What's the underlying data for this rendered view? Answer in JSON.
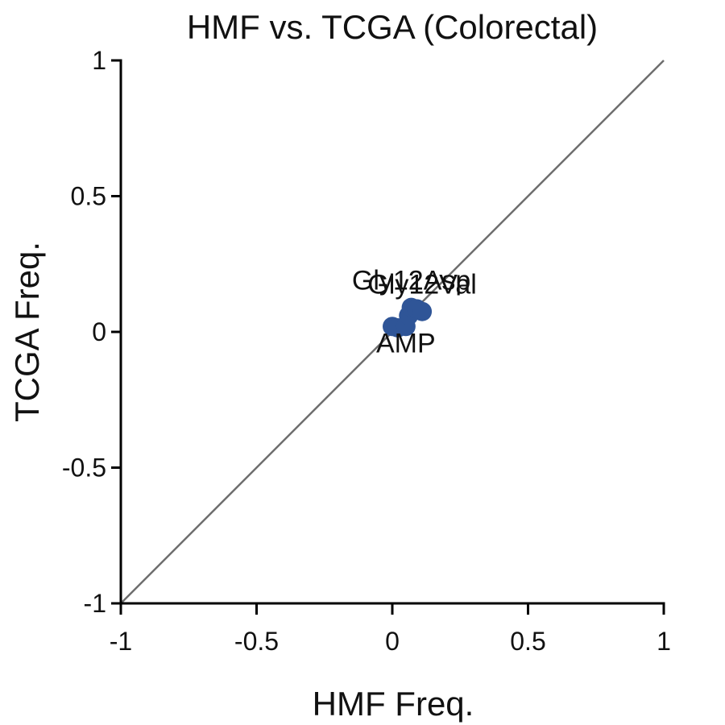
{
  "chart_data": {
    "type": "scatter",
    "title": "HMF vs. TCGA (Colorectal)",
    "xlabel": "HMF Freq.",
    "ylabel": "TCGA Freq.",
    "xlim": [
      -1,
      1
    ],
    "ylim": [
      -1,
      1
    ],
    "xticks": [
      "-1",
      "-0.5",
      "0",
      "0.5",
      "1"
    ],
    "yticks": [
      "1",
      "0.5",
      "0",
      "-0.5",
      "-1"
    ],
    "grid": false,
    "reference_line": "y = x",
    "point_color": "#2f5597",
    "line_color": "#6e6e6e",
    "points": [
      {
        "x": 0.0,
        "y": 0.02,
        "label": ""
      },
      {
        "x": 0.02,
        "y": 0.015,
        "label": ""
      },
      {
        "x": 0.05,
        "y": 0.02,
        "label": "AMP"
      },
      {
        "x": 0.06,
        "y": 0.06,
        "label": ""
      },
      {
        "x": 0.07,
        "y": 0.09,
        "label": "Gly12Asp"
      },
      {
        "x": 0.09,
        "y": 0.085,
        "label": ""
      },
      {
        "x": 0.11,
        "y": 0.075,
        "label": "Gly12Val"
      }
    ]
  }
}
